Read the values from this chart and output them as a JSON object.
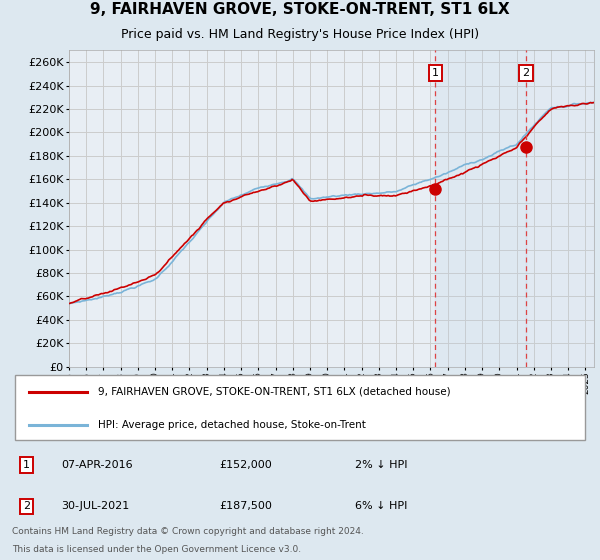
{
  "title": "9, FAIRHAVEN GROVE, STOKE-ON-TRENT, ST1 6LX",
  "subtitle": "Price paid vs. HM Land Registry's House Price Index (HPI)",
  "legend_line1": "9, FAIRHAVEN GROVE, STOKE-ON-TRENT, ST1 6LX (detached house)",
  "legend_line2": "HPI: Average price, detached house, Stoke-on-Trent",
  "annotation1_date": "07-APR-2016",
  "annotation1_price_str": "£152,000",
  "annotation1_hpi_str": "2% ↓ HPI",
  "annotation1_price": 152000,
  "annotation1_year": 2016.27,
  "annotation2_date": "30-JUL-2021",
  "annotation2_price_str": "£187,500",
  "annotation2_hpi_str": "6% ↓ HPI",
  "annotation2_price": 187500,
  "annotation2_year": 2021.54,
  "footer_line1": "Contains HM Land Registry data © Crown copyright and database right 2024.",
  "footer_line2": "This data is licensed under the Open Government Licence v3.0.",
  "ylim_min": 0,
  "ylim_max": 270000,
  "ytick_step": 20000,
  "xmin": 1995,
  "xmax": 2025.5,
  "hpi_color": "#7ab4d8",
  "price_color": "#cc0000",
  "bg_color": "#dde8f0",
  "plot_bg": "#e8eef4",
  "grid_color": "#cccccc",
  "vline_color": "#dd4444",
  "title_fontsize": 11,
  "subtitle_fontsize": 9
}
